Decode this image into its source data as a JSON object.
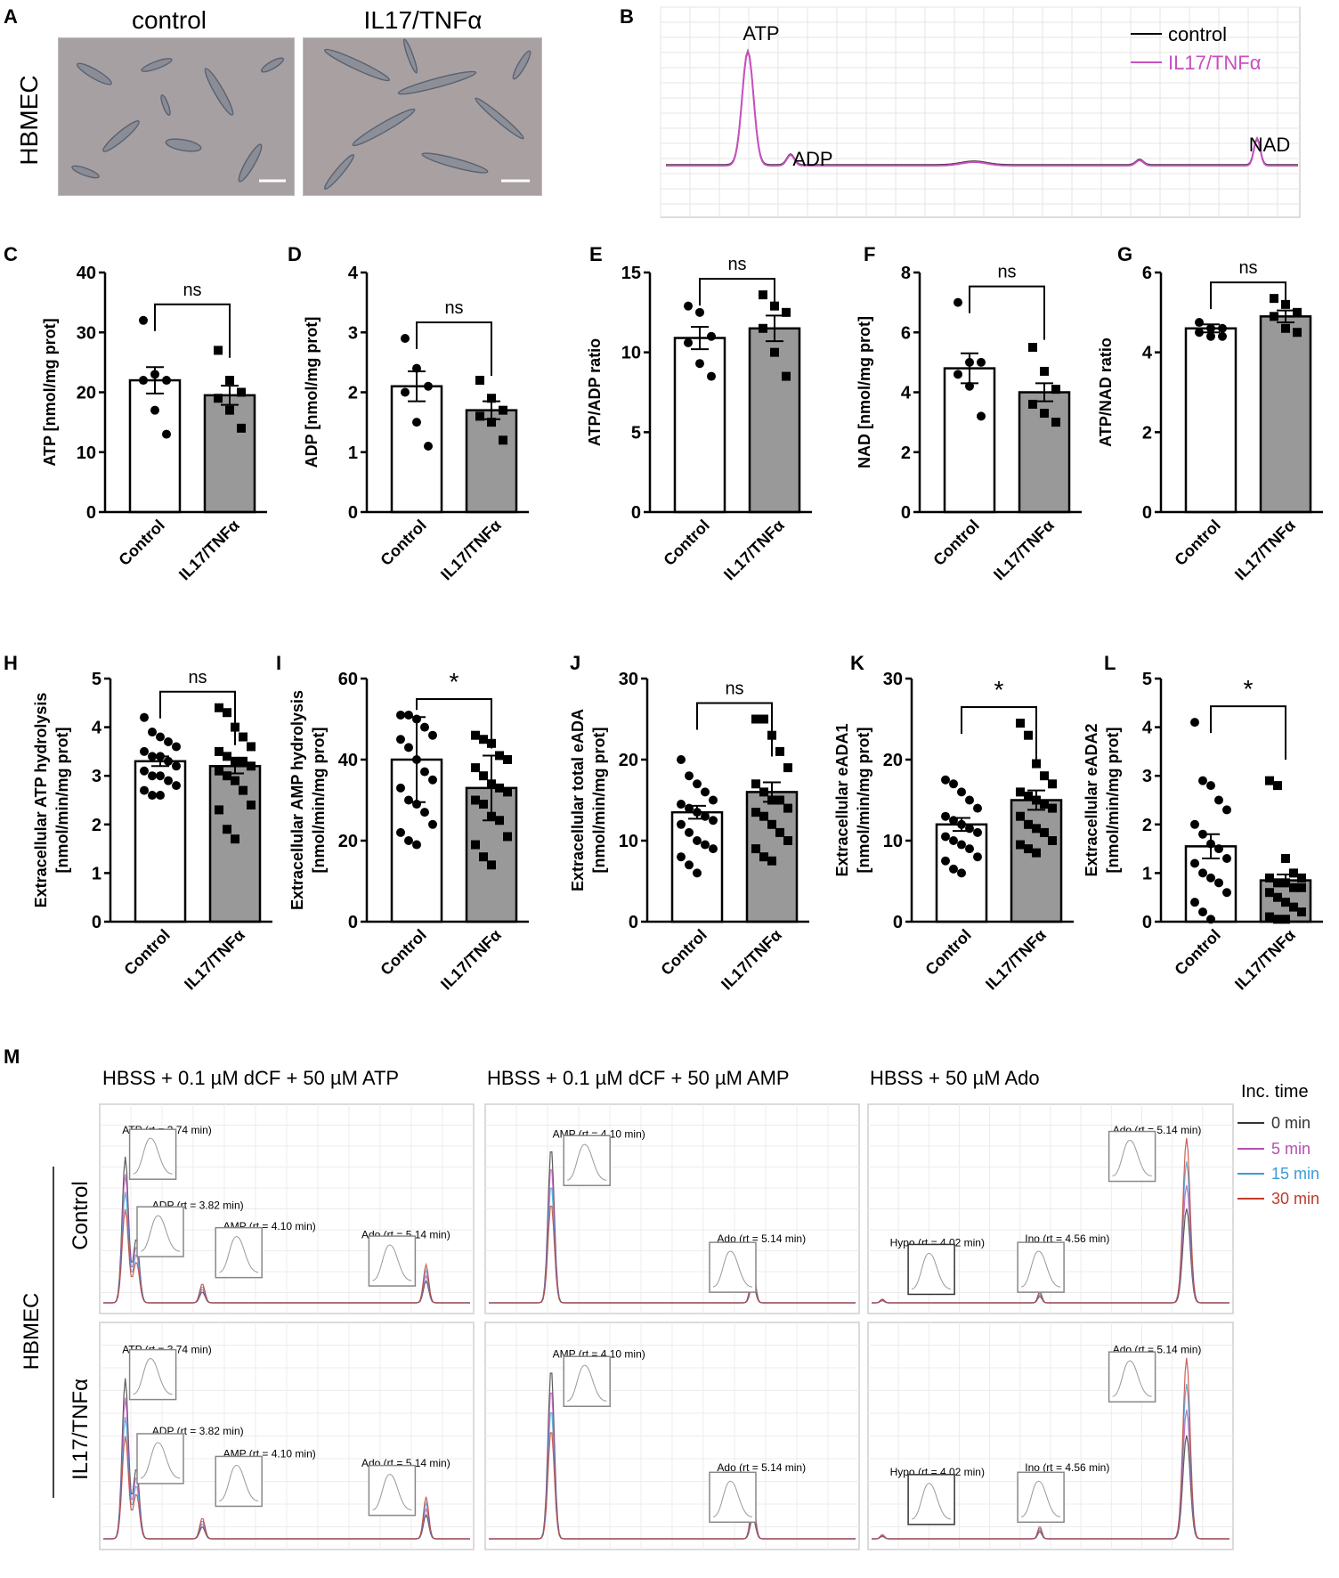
{
  "panels": {
    "A": {
      "letter": "A",
      "row_label": "HBMEC",
      "col_labels": [
        "control",
        "IL17/TNFα"
      ]
    },
    "B": {
      "letter": "B",
      "legend": [
        {
          "name": "control",
          "color": "#000000"
        },
        {
          "name": "IL17/TNFα",
          "color": "#c94fc0"
        }
      ],
      "peaks": [
        "ATP",
        "ADP",
        "NAD"
      ]
    },
    "M": {
      "letter": "M",
      "row_label": "HBMEC",
      "row_groups": [
        "Control",
        "IL17/TNFα"
      ],
      "columns": [
        "HBSS + 0.1 µM dCF + 50 µM ATP",
        "HBSS + 0.1 µM dCF + 50 µM AMP",
        "HBSS + 50 µM Ado"
      ],
      "legend_title": "Inc. time",
      "legend": [
        {
          "name": "0 min",
          "color": "#333333"
        },
        {
          "name": "5 min",
          "color": "#b64fb0"
        },
        {
          "name": "15 min",
          "color": "#3a9bd8"
        },
        {
          "name": "30 min",
          "color": "#c0392b"
        }
      ],
      "peak_labels": {
        "atp": "ATP (rt = 3.74 min)",
        "adp": "ADP (rt = 3.82 min)",
        "amp": "AMP (rt = 4.10 min)",
        "ado": "Ado (rt = 5.14 min)",
        "hypo": "Hypo (rt = 4.02 min)",
        "ino": "Ino (rt = 4.56 min)"
      }
    }
  },
  "colors": {
    "control_bar": "#ffffff",
    "treated_bar": "#999999",
    "accent": "#c94fc0"
  },
  "chart_data": [
    {
      "id": "C",
      "type": "bar",
      "letter": "C",
      "ylabel": [
        "ATP [nmol/mg prot]"
      ],
      "categories": [
        "Control",
        "IL17/TNFα"
      ],
      "ylim": [
        0,
        40
      ],
      "yticks": [
        0,
        10,
        20,
        30,
        40
      ],
      "values": [
        22,
        19.5
      ],
      "sem": [
        2.2,
        1.6
      ],
      "points": [
        [
          32,
          23,
          22,
          22,
          17,
          13
        ],
        [
          27,
          22,
          20,
          19,
          17,
          14
        ]
      ],
      "sig": "ns"
    },
    {
      "id": "D",
      "type": "bar",
      "letter": "D",
      "ylabel": [
        "ADP [nmol/mg prot]"
      ],
      "categories": [
        "Control",
        "IL17/TNFα"
      ],
      "ylim": [
        0,
        4
      ],
      "yticks": [
        0,
        1,
        2,
        3,
        4
      ],
      "values": [
        2.1,
        1.7
      ],
      "sem": [
        0.25,
        0.15
      ],
      "points": [
        [
          2.9,
          2.4,
          2.1,
          2.0,
          1.5,
          1.1
        ],
        [
          2.2,
          1.9,
          1.7,
          1.6,
          1.5,
          1.2
        ]
      ],
      "sig": "ns"
    },
    {
      "id": "E",
      "type": "bar",
      "letter": "E",
      "ylabel": [
        "ATP/ADP ratio"
      ],
      "categories": [
        "Control",
        "IL17/TNFα"
      ],
      "ylim": [
        0,
        15
      ],
      "yticks": [
        0,
        5,
        10,
        15
      ],
      "values": [
        10.9,
        11.5
      ],
      "sem": [
        0.7,
        0.8
      ],
      "points": [
        [
          12.9,
          12.5,
          11,
          10.6,
          9.3,
          8.5
        ],
        [
          13.6,
          12.9,
          12.5,
          11.5,
          10,
          8.5
        ]
      ],
      "sig": "ns"
    },
    {
      "id": "F",
      "type": "bar",
      "letter": "F",
      "ylabel": [
        "NAD [nmol/mg prot]"
      ],
      "categories": [
        "Control",
        "IL17/TNFα"
      ],
      "ylim": [
        0,
        8
      ],
      "yticks": [
        0,
        2,
        4,
        6,
        8
      ],
      "values": [
        4.8,
        4.0
      ],
      "sem": [
        0.5,
        0.3
      ],
      "points": [
        [
          7,
          5,
          5,
          4.6,
          4.2,
          3.2
        ],
        [
          5.5,
          4.7,
          4.1,
          3.6,
          3.3,
          3
        ]
      ],
      "sig": "ns"
    },
    {
      "id": "G",
      "type": "bar",
      "letter": "G",
      "ylabel": [
        "ATP/NAD ratio"
      ],
      "categories": [
        "Control",
        "IL17/TNFα"
      ],
      "ylim": [
        0,
        6
      ],
      "yticks": [
        0,
        2,
        4,
        6
      ],
      "values": [
        4.6,
        4.9
      ],
      "sem": [
        0.1,
        0.15
      ],
      "points": [
        [
          4.75,
          4.6,
          4.6,
          4.5,
          4.4,
          4.4
        ],
        [
          5.35,
          5.2,
          5.0,
          4.9,
          4.6,
          4.5
        ]
      ],
      "sig": "ns"
    },
    {
      "id": "H",
      "type": "bar",
      "letter": "H",
      "ylabel": [
        "Extracellular ATP hydrolysis",
        "[nmol/min/mg prot]"
      ],
      "categories": [
        "Control",
        "IL17/TNFα"
      ],
      "ylim": [
        0,
        5
      ],
      "yticks": [
        0,
        1,
        2,
        3,
        4,
        5
      ],
      "values": [
        3.3,
        3.2
      ],
      "sem": [
        0.1,
        0.15
      ],
      "points": [
        [
          4.2,
          3.9,
          3.8,
          3.7,
          3.6,
          3.5,
          3.4,
          3.4,
          3.3,
          3.2,
          3.1,
          3.0,
          3.0,
          2.9,
          2.8,
          2.7,
          2.6,
          2.6
        ],
        [
          4.4,
          4.3,
          4.0,
          3.8,
          3.6,
          3.5,
          3.4,
          3.3,
          3.3,
          3.2,
          3.1,
          3.0,
          2.9,
          2.7,
          2.4,
          2.3,
          1.9,
          1.7
        ]
      ],
      "sig": "ns"
    },
    {
      "id": "I",
      "type": "bar",
      "letter": "I",
      "ylabel": [
        "Extracellular AMP hydrolysis",
        "[nmol/min/mg prot]"
      ],
      "categories": [
        "Control",
        "IL17/TNFα"
      ],
      "ylim": [
        0,
        60
      ],
      "yticks": [
        0,
        20,
        40,
        60
      ],
      "values": [
        40,
        33
      ],
      "sem": [
        10.5,
        8
      ],
      "points": [
        [
          51,
          51,
          50,
          48,
          46,
          45,
          43,
          40,
          37,
          35,
          33,
          30,
          29,
          27,
          24,
          22,
          20,
          19
        ],
        [
          46,
          45,
          44,
          41,
          40,
          38,
          36,
          34,
          33,
          32,
          30,
          29,
          26,
          25,
          21,
          19,
          16,
          14
        ]
      ],
      "sig": "*"
    },
    {
      "id": "J",
      "type": "bar",
      "letter": "J",
      "ylabel": [
        "Extracellular total eADA",
        "[nmol/min/mg prot]"
      ],
      "categories": [
        "Control",
        "IL17/TNFα"
      ],
      "ylim": [
        0,
        30
      ],
      "yticks": [
        0,
        10,
        20,
        30
      ],
      "values": [
        13.5,
        16
      ],
      "sem": [
        0.8,
        1.2
      ],
      "points": [
        [
          20,
          18,
          17,
          16,
          15,
          14.5,
          14,
          13.5,
          13,
          12.5,
          12,
          11,
          10,
          9.5,
          9,
          8,
          7,
          6
        ],
        [
          25,
          25,
          23,
          21,
          19,
          17,
          16,
          15,
          15,
          14,
          13.5,
          13,
          12,
          11,
          10,
          9,
          8,
          7.5
        ]
      ],
      "sig": "ns"
    },
    {
      "id": "K",
      "type": "bar",
      "letter": "K",
      "ylabel": [
        "Extracellular eADA1",
        "[nmol/min/mg prot]"
      ],
      "categories": [
        "Control",
        "IL17/TNFα"
      ],
      "ylim": [
        0,
        30
      ],
      "yticks": [
        0,
        10,
        20,
        30
      ],
      "values": [
        12,
        15
      ],
      "sem": [
        0.8,
        1.2
      ],
      "points": [
        [
          17.5,
          17,
          16,
          15,
          14,
          13,
          12.5,
          12,
          11.5,
          11,
          10.5,
          10,
          9.5,
          9,
          8,
          7.5,
          6.5,
          6
        ],
        [
          24.5,
          23,
          19.5,
          18,
          17,
          16,
          15.5,
          15,
          14.5,
          14,
          13,
          12,
          11.5,
          11,
          10,
          9.5,
          9,
          8.5
        ]
      ],
      "sig": "*"
    },
    {
      "id": "L",
      "type": "bar",
      "letter": "L",
      "ylabel": [
        "Extracellular eADA2",
        "[nmol/min/mg prot]"
      ],
      "categories": [
        "Control",
        "IL17/TNFα"
      ],
      "ylim": [
        0,
        5
      ],
      "yticks": [
        0,
        1,
        2,
        3,
        4,
        5
      ],
      "values": [
        1.55,
        0.85
      ],
      "sem": [
        0.25,
        0.12
      ],
      "points": [
        [
          4.1,
          2.9,
          2.8,
          2.5,
          2.3,
          2.0,
          1.8,
          1.6,
          1.5,
          1.3,
          1.2,
          1.0,
          0.9,
          0.8,
          0.6,
          0.4,
          0.2,
          0.05
        ],
        [
          2.9,
          2.8,
          1.3,
          1.0,
          0.9,
          0.9,
          0.8,
          0.8,
          0.7,
          0.7,
          0.6,
          0.5,
          0.4,
          0.3,
          0.2,
          0.1,
          0.05,
          0.05
        ]
      ],
      "sig": "*"
    }
  ]
}
